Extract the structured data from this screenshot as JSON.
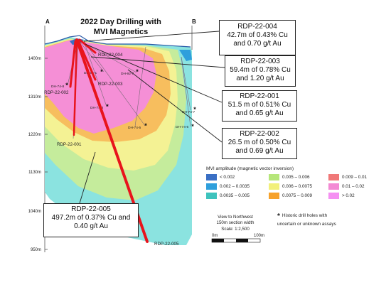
{
  "title_line1": "2022 Day Drilling with",
  "title_line2": "MVI Magnetics",
  "section_ends": {
    "left": "A",
    "right": "B"
  },
  "elevation_labels": [
    "1400m",
    "1310m",
    "1220m",
    "1130m",
    "1040m",
    "950m"
  ],
  "callouts": [
    {
      "hole": "RDP-22-004",
      "line1": "42.7m of 0.43% Cu",
      "line2": "and 0.70 g/t Au"
    },
    {
      "hole": "RDP-22-003",
      "line1": "59.4m of 0.78% Cu",
      "line2": "and 1.20 g/t Au"
    },
    {
      "hole": "RDP-22-001",
      "line1": "51.5 m of 0.51% Cu",
      "line2": "and 0.65 g/t Au"
    },
    {
      "hole": "RDP-22-002",
      "line1": "26.5 m of 0.50% Cu",
      "line2": "and 0.69 g/t Au"
    },
    {
      "hole": "RDP-22-005",
      "line1": "497.2m of 0.37% Cu and",
      "line2": "0.40 g/t Au"
    }
  ],
  "trace_labels": {
    "rdp004": "RDP-22-004",
    "rdp003": "RDP-22-003",
    "rdp002": "RDP-22-002",
    "rdp001": "RDP-22-001",
    "rdp005": "RDP-22-005"
  },
  "historic_holes": [
    "DH-92-1",
    "DH-74-8",
    "DH-92-7",
    "DH-74-3",
    "DH-74-5",
    "DH-74-7",
    "DH-74-6"
  ],
  "legend": {
    "title": "MVI amplitude (magnetic vector inversion)",
    "items": [
      {
        "label": "< 0.002",
        "color": "#3a6fc4"
      },
      {
        "label": "0.005 – 0.006",
        "color": "#b6e67a"
      },
      {
        "label": "0.009 – 0.01",
        "color": "#f07878"
      },
      {
        "label": "0.002 – 0.0035",
        "color": "#2f9fdc"
      },
      {
        "label": "0.006 – 0.0075",
        "color": "#f2f07a"
      },
      {
        "label": "0.01 – 0.02",
        "color": "#f38ad4"
      },
      {
        "label": "0.0035 – 0.005",
        "color": "#3ec3bd"
      },
      {
        "label": "0.0075 – 0.009",
        "color": "#f6a22c"
      },
      {
        "label": "> 0.02",
        "color": "#f591f2"
      }
    ]
  },
  "view_note": {
    "line1": "View to Northwest",
    "line2": "150m section width",
    "line3": "Scale: 1:2,500"
  },
  "scale_bar": {
    "left": "0m",
    "right": "100m"
  },
  "historic_note": {
    "symbol": "*",
    "line1": "Historic drill holes with",
    "line2": "uncertain or unknown assays"
  },
  "colors": {
    "teal": "#8be3e0",
    "green": "#c5ec9c",
    "yellow": "#f4f294",
    "orange": "#f7be5e",
    "pink": "#f58fd6",
    "blue": "#3a6fc4",
    "drill": "#e8141c"
  }
}
